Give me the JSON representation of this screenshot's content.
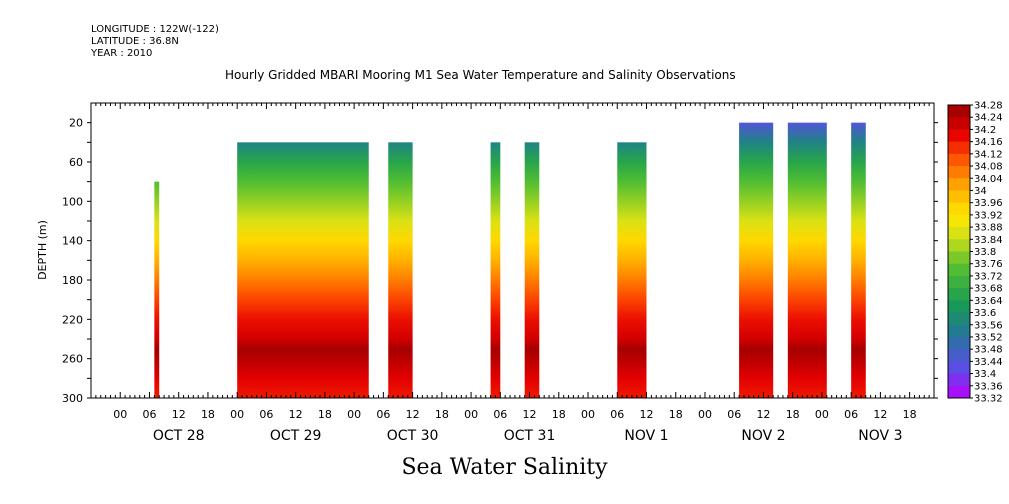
{
  "header": {
    "longitude": "LONGITUDE : 122W(-122)",
    "latitude": "LATITUDE : 36.8N",
    "year": "YEAR : 2010"
  },
  "bottom_label": "Sea Water Salinity",
  "chart_data": {
    "type": "heatmap",
    "title": "Hourly Gridded MBARI Mooring M1 Sea Water Temperature and Salinity Observations",
    "xlabel": "",
    "ylabel": "DEPTH (m)",
    "y_range": [
      300,
      0
    ],
    "y_ticks": [
      20,
      60,
      100,
      140,
      180,
      220,
      260,
      300
    ],
    "x_range": [
      "2010-10-27 18:00",
      "2010-11-03 23:00"
    ],
    "x_tick_labels": [
      "00",
      "06",
      "12",
      "18",
      "00",
      "06",
      "12",
      "18",
      "00",
      "06",
      "12",
      "18",
      "00",
      "06",
      "12",
      "18",
      "00",
      "06",
      "12",
      "18",
      "00",
      "06",
      "12",
      "18",
      "00",
      "06",
      "12",
      "18"
    ],
    "x_days": [
      "OCT 28",
      "OCT 29",
      "OCT 30",
      "OCT 31",
      "NOV  1",
      "NOV  2",
      "NOV  3"
    ],
    "colorbar": {
      "min": 33.32,
      "max": 34.28,
      "labels": [
        "34.28",
        "34.24",
        "34.2",
        "34.16",
        "34.12",
        "34.08",
        "34.04",
        "34",
        "33.96",
        "33.92",
        "33.88",
        "33.84",
        "33.8",
        "33.76",
        "33.72",
        "33.68",
        "33.64",
        "33.6",
        "33.56",
        "33.52",
        "33.48",
        "33.44",
        "33.4",
        "33.36",
        "33.32"
      ]
    },
    "data_segments": [
      {
        "start": "2010-10-28 07:00",
        "end": "2010-10-28 08:00",
        "top_depth": 80
      },
      {
        "start": "2010-10-29 00:00",
        "end": "2010-10-30 03:00",
        "top_depth": 40
      },
      {
        "start": "2010-10-30 07:00",
        "end": "2010-10-30 12:00",
        "top_depth": 40
      },
      {
        "start": "2010-10-31 04:00",
        "end": "2010-10-31 06:00",
        "top_depth": 40
      },
      {
        "start": "2010-10-31 11:00",
        "end": "2010-10-31 14:00",
        "top_depth": 40
      },
      {
        "start": "2010-11-01 06:00",
        "end": "2010-11-01 12:00",
        "top_depth": 40
      },
      {
        "start": "2010-11-02 07:00",
        "end": "2010-11-02 14:00",
        "top_depth": 20
      },
      {
        "start": "2010-11-02 17:00",
        "end": "2010-11-03 01:00",
        "top_depth": 20
      },
      {
        "start": "2010-11-03 06:00",
        "end": "2010-11-03 09:00",
        "top_depth": 20
      }
    ],
    "salinity_profile": [
      {
        "depth": 20,
        "value": 33.44
      },
      {
        "depth": 40,
        "value": 33.56
      },
      {
        "depth": 60,
        "value": 33.66
      },
      {
        "depth": 80,
        "value": 33.74
      },
      {
        "depth": 100,
        "value": 33.8
      },
      {
        "depth": 120,
        "value": 33.86
      },
      {
        "depth": 140,
        "value": 33.94
      },
      {
        "depth": 160,
        "value": 34.0
      },
      {
        "depth": 180,
        "value": 34.06
      },
      {
        "depth": 200,
        "value": 34.12
      },
      {
        "depth": 220,
        "value": 34.17
      },
      {
        "depth": 240,
        "value": 34.21
      },
      {
        "depth": 250,
        "value": 34.26
      },
      {
        "depth": 260,
        "value": 34.24
      },
      {
        "depth": 280,
        "value": 34.19
      },
      {
        "depth": 300,
        "value": 34.16
      }
    ]
  }
}
